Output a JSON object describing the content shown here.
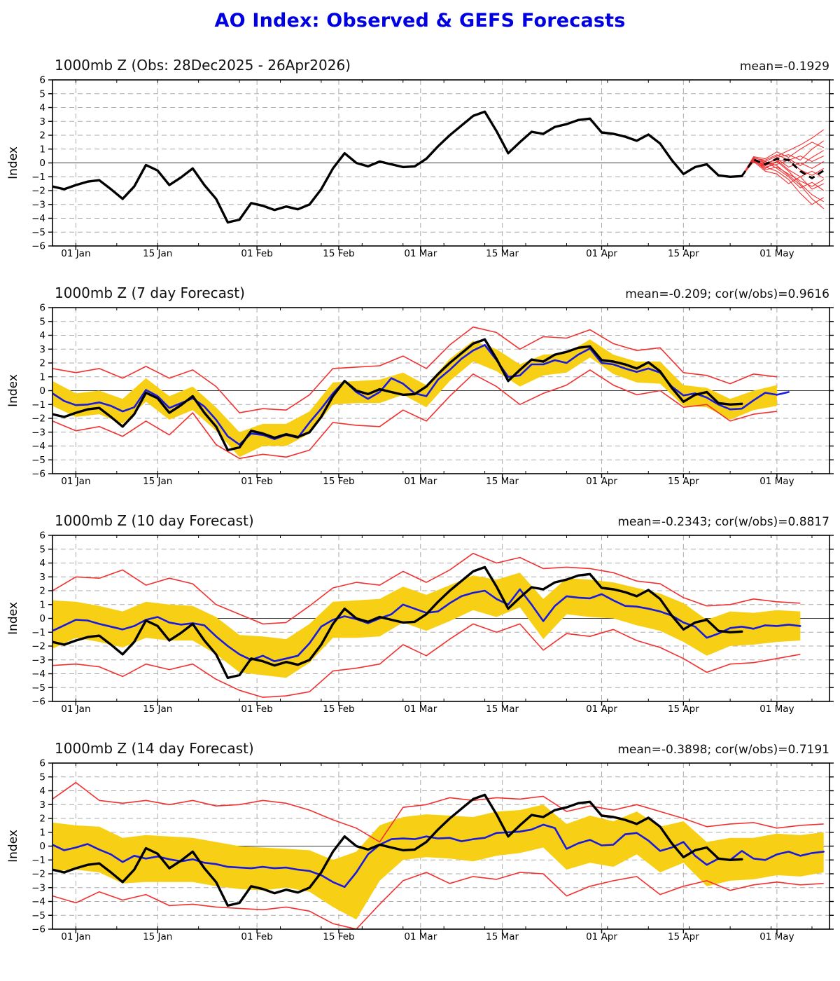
{
  "page": {
    "title": "AO Index: Observed & GEFS Forecasts",
    "title_color": "#0000e0"
  },
  "colors": {
    "observed": "#000000",
    "forecast_mean": "#000000",
    "ensemble_member": "#f23030",
    "blue_mean": "#1a1adf",
    "red_envelope": "#f23030",
    "yellow_band": "#f7d016",
    "grid": "#ababab",
    "zero_line": "#3a3a3a",
    "frame": "#000000"
  },
  "axis": {
    "ylabel": "Index",
    "ylim": [
      -6,
      6
    ],
    "xlim": [
      0,
      133
    ],
    "yticks": [
      6,
      5,
      4,
      3,
      2,
      1,
      0,
      -1,
      -2,
      -3,
      -4,
      -5,
      -6
    ],
    "xticks": [
      {
        "day": 4,
        "label": "01 Jan"
      },
      {
        "day": 18,
        "label": "15 Jan"
      },
      {
        "day": 35,
        "label": "01 Feb"
      },
      {
        "day": 49,
        "label": "15 Feb"
      },
      {
        "day": 63,
        "label": "01 Mar"
      },
      {
        "day": 77,
        "label": "15 Mar"
      },
      {
        "day": 94,
        "label": "01 Apr"
      },
      {
        "day": 108,
        "label": "15 Apr"
      },
      {
        "day": 124,
        "label": "01 May"
      }
    ],
    "minor_tick_start": 4,
    "minor_tick_step": 7
  },
  "observed": {
    "name": "Observed AO index",
    "x_start": 0,
    "x_step": 2,
    "values": [
      -1.7,
      -1.9,
      -1.6,
      -1.35,
      -1.25,
      -1.9,
      -2.6,
      -1.7,
      -0.15,
      -0.55,
      -1.6,
      -1.05,
      -0.4,
      -1.6,
      -2.6,
      -4.3,
      -4.1,
      -2.9,
      -3.1,
      -3.4,
      -3.15,
      -3.35,
      -3.0,
      -1.9,
      -0.4,
      0.7,
      0.0,
      -0.25,
      0.1,
      -0.1,
      -0.3,
      -0.25,
      0.3,
      1.2,
      2.0,
      2.7,
      3.4,
      3.7,
      2.3,
      0.7,
      1.5,
      2.25,
      2.1,
      2.6,
      2.8,
      3.1,
      3.2,
      2.2,
      2.1,
      1.9,
      1.6,
      2.05,
      1.4,
      0.2,
      -0.8,
      -0.3,
      -0.1,
      -0.9,
      -1.0,
      -0.95
    ]
  },
  "chart_data": [
    {
      "type": "line",
      "title": "1000mb Z (Obs: 28Dec2025 - 26Apr2026)",
      "stats": "mean=-0.1929",
      "ylabel": "Index",
      "ylim": [
        -6,
        6
      ],
      "grid": true,
      "has_observed": true,
      "forecast_mean": {
        "name": "GEFS ensemble mean (dashed)",
        "x_start": 118,
        "x_step": 2,
        "values": [
          -0.95,
          0.25,
          -0.1,
          0.3,
          0.2,
          -0.6,
          -1.1,
          -0.55
        ]
      },
      "members": {
        "name": "GEFS ensemble members",
        "x_start": 118,
        "x_step": 2,
        "values": [
          [
            -0.95,
            0.4,
            0.1,
            0.5,
            0.9,
            1.3,
            1.8,
            2.4
          ],
          [
            -0.95,
            0.3,
            -0.2,
            0.4,
            0.6,
            0.2,
            1.0,
            1.6
          ],
          [
            -0.95,
            0.15,
            -0.4,
            0.1,
            0.3,
            -0.2,
            0.4,
            0.9
          ],
          [
            -0.95,
            0.35,
            0.2,
            0.6,
            0.2,
            0.5,
            0.1,
            0.5
          ],
          [
            -0.95,
            0.25,
            -0.1,
            0.3,
            -0.3,
            0.0,
            -0.4,
            0.1
          ],
          [
            -0.95,
            0.1,
            -0.3,
            -0.1,
            0.2,
            -0.5,
            -0.9,
            -0.4
          ],
          [
            -0.95,
            0.3,
            0.0,
            0.2,
            -0.5,
            -1.0,
            -0.6,
            -1.1
          ],
          [
            -0.95,
            0.2,
            -0.5,
            -0.3,
            -0.8,
            -1.3,
            -1.7,
            -1.2
          ],
          [
            -0.95,
            0.4,
            0.1,
            -0.4,
            -1.0,
            -1.8,
            -1.4,
            -2.0
          ],
          [
            -0.95,
            0.15,
            -0.2,
            0.1,
            -0.6,
            -1.5,
            -2.3,
            -2.8
          ],
          [
            -0.95,
            0.3,
            -0.3,
            -0.6,
            -1.2,
            -2.2,
            -3.0,
            -2.5
          ],
          [
            -0.95,
            0.2,
            0.1,
            -0.2,
            -0.9,
            -1.6,
            -2.6,
            -3.3
          ],
          [
            -0.95,
            0.45,
            0.3,
            0.8,
            0.4,
            1.0,
            1.5,
            1.1
          ],
          [
            -0.95,
            0.1,
            -0.6,
            -0.8,
            -1.5,
            -1.0,
            -1.9,
            -1.5
          ]
        ]
      }
    },
    {
      "type": "line",
      "title": "1000mb Z (7 day Forecast)",
      "stats": "mean=-0.209; cor(w/obs)=0.9616",
      "ylabel": "Index",
      "ylim": [
        -6,
        6
      ],
      "grid": true,
      "has_observed": true,
      "blue_mean": {
        "name": "7-day forecast ensemble mean",
        "x_start": 0,
        "x_step": 2,
        "values": [
          -0.2,
          -0.75,
          -1.05,
          -1.0,
          -0.85,
          -1.1,
          -1.5,
          -1.2,
          0.05,
          -0.4,
          -1.25,
          -0.9,
          -0.55,
          -1.15,
          -2.1,
          -3.3,
          -3.9,
          -3.1,
          -3.2,
          -3.5,
          -3.2,
          -3.4,
          -2.3,
          -1.3,
          -0.2,
          0.7,
          -0.1,
          -0.6,
          -0.1,
          0.9,
          0.5,
          -0.2,
          -0.4,
          0.8,
          1.5,
          2.3,
          2.9,
          3.3,
          2.2,
          1.0,
          1.1,
          1.9,
          1.9,
          2.2,
          2.0,
          2.6,
          3.05,
          2.0,
          1.9,
          1.6,
          1.35,
          1.6,
          1.3,
          0.3,
          -0.35,
          -0.2,
          -0.5,
          -1.0,
          -1.35,
          -1.3,
          -0.7,
          -0.15,
          -0.3,
          -0.1
        ]
      },
      "band": {
        "name": "ensemble spread band",
        "x_start": 0,
        "x_step": 4,
        "upper": [
          0.7,
          -0.2,
          0.0,
          -0.6,
          0.9,
          -0.4,
          0.3,
          -1.2,
          -3.0,
          -2.4,
          -2.4,
          -1.5,
          0.6,
          0.7,
          0.8,
          1.3,
          0.4,
          2.3,
          3.6,
          3.0,
          1.9,
          2.6,
          2.7,
          3.7,
          2.6,
          2.1,
          2.1,
          0.4,
          0.2,
          -0.6,
          0.0,
          0.4
        ],
        "lower": [
          -1.1,
          -1.9,
          -1.7,
          -2.4,
          -0.8,
          -2.1,
          -1.4,
          -2.9,
          -4.8,
          -4.0,
          -4.0,
          -3.1,
          -1.0,
          -0.9,
          -0.9,
          -0.3,
          -1.2,
          0.7,
          2.1,
          1.4,
          0.3,
          1.1,
          1.3,
          2.4,
          1.2,
          0.6,
          0.5,
          -1.1,
          -1.2,
          -2.1,
          -1.4,
          -1.1
        ]
      },
      "red_upper": {
        "x_start": 0,
        "x_step": 4,
        "values": [
          1.6,
          1.3,
          1.6,
          0.9,
          1.75,
          0.9,
          1.5,
          0.3,
          -1.6,
          -1.3,
          -1.4,
          -0.3,
          1.6,
          1.7,
          1.8,
          2.5,
          1.6,
          3.3,
          4.6,
          4.2,
          3.0,
          3.9,
          3.8,
          4.4,
          3.4,
          2.9,
          3.1,
          1.3,
          1.1,
          0.5,
          1.2,
          1.0
        ]
      },
      "red_lower": {
        "x_start": 0,
        "x_step": 4,
        "values": [
          -2.2,
          -2.9,
          -2.6,
          -3.3,
          -2.2,
          -3.2,
          -1.6,
          -3.9,
          -4.9,
          -4.6,
          -4.8,
          -4.3,
          -2.3,
          -2.5,
          -2.6,
          -1.4,
          -2.2,
          -0.4,
          1.2,
          0.3,
          -1.0,
          -0.2,
          0.4,
          1.5,
          0.4,
          -0.3,
          0.0,
          -1.2,
          -1.0,
          -2.2,
          -1.7,
          -1.5
        ]
      }
    },
    {
      "type": "line",
      "title": "1000mb Z (10 day Forecast)",
      "stats": "mean=-0.2343; cor(w/obs)=0.8817",
      "ylabel": "Index",
      "ylim": [
        -6,
        6
      ],
      "grid": true,
      "has_observed": true,
      "blue_mean": {
        "name": "10-day forecast ensemble mean",
        "x_start": 0,
        "x_step": 2,
        "values": [
          -0.9,
          -0.5,
          -0.1,
          -0.15,
          -0.4,
          -0.6,
          -0.8,
          -0.55,
          -0.1,
          0.1,
          -0.3,
          -0.45,
          -0.35,
          -0.5,
          -1.3,
          -2.0,
          -2.6,
          -3.0,
          -2.7,
          -3.1,
          -2.9,
          -2.7,
          -1.8,
          -0.6,
          -0.1,
          0.15,
          -0.05,
          -0.35,
          0.0,
          0.3,
          1.0,
          0.7,
          0.4,
          0.5,
          1.1,
          1.6,
          1.85,
          2.0,
          1.4,
          1.0,
          2.1,
          1.0,
          -0.2,
          0.9,
          1.6,
          1.5,
          1.45,
          1.75,
          1.3,
          0.9,
          0.85,
          0.7,
          0.5,
          0.2,
          -0.3,
          -0.6,
          -1.4,
          -1.1,
          -0.7,
          -0.6,
          -0.75,
          -0.5,
          -0.55,
          -0.45,
          -0.55
        ]
      },
      "band": {
        "name": "ensemble spread band",
        "x_start": 0,
        "x_step": 4,
        "upper": [
          1.3,
          1.2,
          0.9,
          0.5,
          1.2,
          1.0,
          0.9,
          0.1,
          -1.2,
          -1.3,
          -1.5,
          -0.4,
          1.2,
          1.3,
          1.4,
          2.3,
          1.7,
          2.4,
          3.1,
          2.8,
          3.3,
          1.4,
          2.9,
          2.8,
          2.6,
          2.2,
          1.8,
          1.1,
          -0.1,
          0.5,
          0.4,
          0.6,
          0.5
        ],
        "lower": [
          -2.2,
          -1.4,
          -1.7,
          -2.1,
          -1.4,
          -1.6,
          -1.6,
          -2.6,
          -3.9,
          -4.1,
          -4.3,
          -3.2,
          -1.4,
          -1.4,
          -1.3,
          -0.3,
          -0.9,
          -0.2,
          0.6,
          0.1,
          0.8,
          -1.5,
          0.3,
          0.1,
          0.0,
          -0.5,
          -0.9,
          -1.7,
          -2.7,
          -2.0,
          -1.9,
          -1.7,
          -1.6
        ]
      },
      "red_upper": {
        "x_start": 0,
        "x_step": 4,
        "values": [
          2.0,
          3.0,
          2.9,
          3.5,
          2.4,
          2.9,
          2.5,
          1.0,
          0.3,
          -0.4,
          -0.3,
          0.9,
          2.2,
          2.6,
          2.4,
          3.4,
          2.6,
          3.5,
          4.7,
          4.0,
          4.4,
          3.6,
          3.7,
          3.6,
          3.3,
          2.7,
          2.5,
          1.5,
          0.9,
          1.0,
          1.4,
          1.2,
          1.1
        ]
      },
      "red_lower": {
        "x_start": 0,
        "x_step": 4,
        "values": [
          -3.4,
          -3.3,
          -3.5,
          -4.2,
          -3.3,
          -3.7,
          -3.3,
          -4.4,
          -5.2,
          -5.7,
          -5.6,
          -5.3,
          -3.8,
          -3.6,
          -3.3,
          -1.9,
          -2.7,
          -1.5,
          -0.4,
          -1.0,
          -0.4,
          -2.3,
          -1.1,
          -1.3,
          -0.8,
          -1.6,
          -2.1,
          -2.9,
          -3.9,
          -3.3,
          -3.2,
          -2.9,
          -2.6
        ]
      }
    },
    {
      "type": "line",
      "title": "1000mb Z (14 day Forecast)",
      "stats": "mean=-0.3898; cor(w/obs)=0.7191",
      "ylabel": "Index",
      "ylim": [
        -6,
        6
      ],
      "grid": true,
      "has_observed": true,
      "blue_mean": {
        "name": "14-day forecast ensemble mean",
        "x_start": 0,
        "x_step": 2,
        "values": [
          0.1,
          -0.3,
          -0.1,
          0.15,
          -0.25,
          -0.6,
          -1.15,
          -0.7,
          -0.9,
          -0.75,
          -0.95,
          -1.1,
          -0.95,
          -1.2,
          -1.3,
          -1.5,
          -1.55,
          -1.6,
          -1.5,
          -1.6,
          -1.55,
          -1.7,
          -1.8,
          -2.1,
          -2.6,
          -2.95,
          -1.9,
          -0.6,
          0.1,
          0.5,
          0.55,
          0.5,
          0.7,
          0.55,
          0.6,
          0.35,
          0.5,
          0.6,
          0.95,
          1.0,
          1.05,
          1.2,
          1.55,
          1.3,
          -0.2,
          0.2,
          0.45,
          0.05,
          0.1,
          0.85,
          0.95,
          0.4,
          -0.35,
          -0.1,
          0.3,
          -0.7,
          -1.35,
          -0.9,
          -1.0,
          -0.35,
          -0.9,
          -1.0,
          -0.6,
          -0.4,
          -0.7,
          -0.5,
          -0.4
        ]
      },
      "band": {
        "name": "ensemble spread band",
        "x_start": 0,
        "x_step": 4,
        "upper": [
          1.7,
          1.5,
          1.4,
          0.6,
          0.8,
          0.7,
          0.6,
          0.3,
          0.0,
          -0.1,
          -0.2,
          -0.3,
          -1.0,
          -0.4,
          1.5,
          2.1,
          2.3,
          2.2,
          2.1,
          2.5,
          2.6,
          3.0,
          1.6,
          2.2,
          1.8,
          2.5,
          1.4,
          1.8,
          0.3,
          0.6,
          0.6,
          0.9,
          0.8,
          1.0
        ],
        "lower": [
          -1.8,
          -1.7,
          -1.9,
          -2.7,
          -2.6,
          -2.6,
          -2.6,
          -2.9,
          -3.1,
          -3.2,
          -3.0,
          -3.3,
          -4.4,
          -5.3,
          -2.5,
          -1.0,
          -0.8,
          -0.9,
          -1.1,
          -0.7,
          -0.5,
          -0.1,
          -1.7,
          -1.2,
          -1.5,
          -0.6,
          -1.9,
          -1.2,
          -2.9,
          -2.5,
          -2.4,
          -2.1,
          -2.2,
          -1.9
        ]
      },
      "red_upper": {
        "x_start": 0,
        "x_step": 4,
        "values": [
          3.4,
          4.6,
          3.3,
          3.1,
          3.3,
          3.0,
          3.3,
          2.9,
          3.0,
          3.3,
          3.1,
          2.6,
          1.9,
          1.3,
          0.3,
          2.8,
          3.0,
          3.5,
          3.3,
          3.5,
          3.4,
          3.6,
          2.5,
          2.9,
          2.6,
          3.0,
          2.5,
          2.0,
          1.4,
          1.6,
          1.7,
          1.3,
          1.5,
          1.6
        ]
      },
      "red_lower": {
        "x_start": 0,
        "x_step": 4,
        "values": [
          -3.6,
          -4.1,
          -3.3,
          -3.9,
          -3.5,
          -4.3,
          -4.2,
          -4.4,
          -4.5,
          -4.6,
          -4.4,
          -4.7,
          -5.6,
          -6.0,
          -4.2,
          -2.5,
          -1.9,
          -2.7,
          -2.2,
          -2.4,
          -1.9,
          -2.0,
          -3.6,
          -2.9,
          -2.5,
          -2.2,
          -3.5,
          -2.9,
          -2.5,
          -3.2,
          -2.8,
          -2.6,
          -2.8,
          -2.7
        ]
      }
    }
  ]
}
